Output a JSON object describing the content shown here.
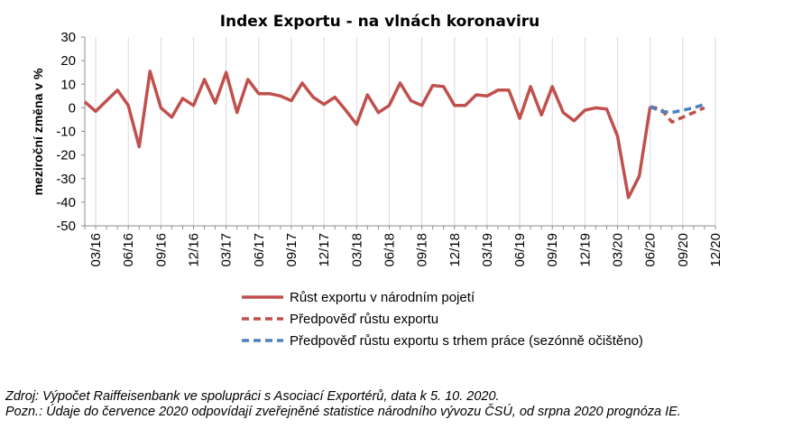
{
  "chart_data": {
    "type": "line",
    "title": "Index Exportu - na vlnách koronaviru",
    "ylabel": "meziroční změna v %",
    "xlabel": "",
    "ylim": [
      -50,
      30
    ],
    "yticks": [
      30,
      20,
      10,
      0,
      -10,
      -20,
      -30,
      -40,
      -50
    ],
    "x_tick_labels": [
      "03/16",
      "06/16",
      "09/16",
      "12/16",
      "03/17",
      "06/17",
      "09/17",
      "12/17",
      "03/18",
      "06/18",
      "09/18",
      "12/18",
      "03/19",
      "06/19",
      "09/19",
      "12/19",
      "03/20",
      "06/20",
      "09/20",
      "12/20"
    ],
    "x_start": "02/16",
    "x_end": "12/20",
    "grid": "vertical",
    "legend_position": "bottom",
    "series": [
      {
        "name": "Růst exportu v národním pojetí",
        "color": "#c0504d",
        "dash": "solid",
        "start": "02/16",
        "values": [
          2.5,
          -1.5,
          3,
          7.5,
          1,
          -16.5,
          15.5,
          0,
          -4,
          4,
          1,
          12,
          2,
          15,
          -2,
          12,
          6,
          6,
          5,
          3,
          10.5,
          4.5,
          1.5,
          4.5,
          -1,
          -7,
          5.5,
          -2,
          1,
          10.5,
          3,
          1,
          9.5,
          9,
          1,
          1,
          5.5,
          5,
          7.5,
          7.5,
          -4.5,
          9,
          -3,
          9,
          -2,
          -5.5,
          -1,
          0,
          -0.5,
          -12,
          -38,
          -29,
          0.5
        ]
      },
      {
        "name": "Předpověď růstu exportu",
        "color": "#c0504d",
        "dash": "dashed",
        "start": "06/20",
        "values": [
          0.5,
          -0.5,
          -6,
          -4,
          -2,
          0
        ]
      },
      {
        "name": "Předpověď růstu exportu s trhem práce (sezónně očištěno)",
        "color": "#4f81bd",
        "dash": "dashed",
        "start": "06/20",
        "values": [
          0.5,
          -1.5,
          -2,
          -1,
          0,
          1.5
        ]
      }
    ]
  },
  "notes": {
    "source": "Zdroj: Výpočet Raiffeisenbank ve spolupráci s Asociací Exportérů, data k 5. 10. 2020.",
    "remark": "Pozn.: Údaje do července 2020 odpovídají zveřejněné statistice národního vývozu ČSÚ, od srpna 2020 prognóza IE."
  }
}
